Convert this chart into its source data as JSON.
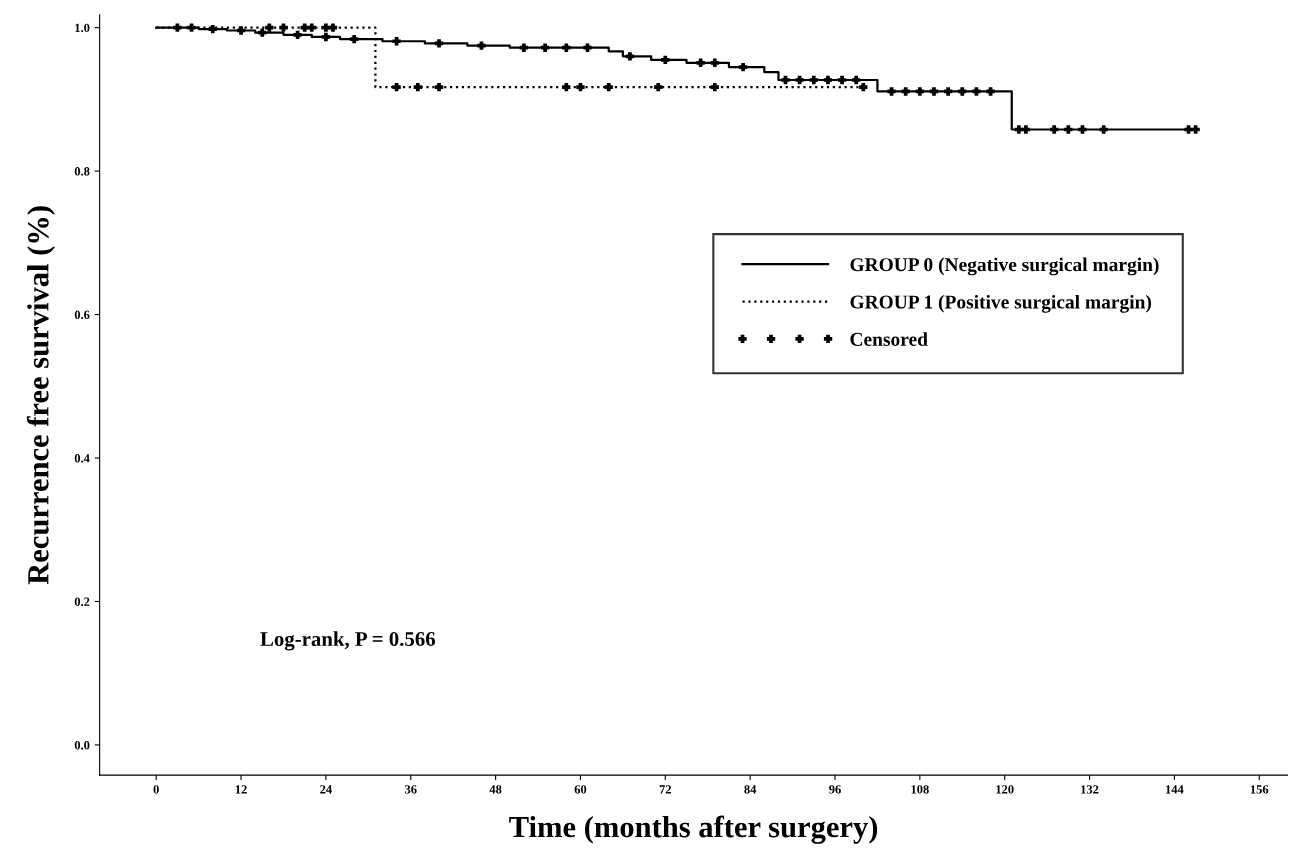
{
  "chart_data": {
    "type": "step",
    "xlabel": "Time (months after surgery)",
    "ylabel": "Recurrence free survival (%)",
    "xlim": [
      -8,
      160
    ],
    "xticks": [
      0,
      12,
      24,
      36,
      48,
      60,
      72,
      84,
      96,
      108,
      120,
      132,
      144,
      156
    ],
    "ylim": [
      -0.042,
      1.018
    ],
    "yticks": [
      {
        "value": 0,
        "label": "0.0"
      },
      0.2,
      0.4,
      0.6,
      0.8,
      {
        "value": 1,
        "label": "1.0"
      }
    ],
    "grid": false,
    "legend": "right",
    "annotations": [
      "Log-rank, P = 0.566"
    ],
    "series": [
      {
        "name": "GROUP 0 (Negative surgical margin)",
        "color": "#000000",
        "line_style": "solid",
        "x": [
          0,
          6,
          10,
          14,
          18,
          22,
          26,
          32,
          38,
          44,
          50,
          64,
          66,
          70,
          75,
          81,
          86,
          88,
          102,
          121,
          147
        ],
        "values": [
          1.0,
          0.998,
          0.996,
          0.993,
          0.99,
          0.987,
          0.984,
          0.981,
          0.978,
          0.975,
          0.972,
          0.967,
          0.96,
          0.955,
          0.951,
          0.945,
          0.938,
          0.927,
          0.911,
          0.858,
          0.858
        ]
      },
      {
        "name": "GROUP 1 (Positive surgical margin)",
        "color": "#000000",
        "line_style": "dotted",
        "x": [
          0,
          31,
          100
        ],
        "values": [
          1.0,
          0.917,
          0.917
        ]
      },
      {
        "name": "Censored",
        "type": "scatter",
        "color": "#000000",
        "marker": "cross",
        "x": [
          3,
          5,
          8,
          12,
          15,
          20,
          24,
          28,
          34,
          40,
          46,
          52,
          55,
          58,
          61,
          67,
          72,
          77,
          79,
          83,
          89,
          91,
          93,
          95,
          97,
          99,
          104,
          106,
          108,
          110,
          112,
          114,
          116,
          118,
          122,
          123,
          127,
          129,
          131,
          134,
          146,
          147,
          16,
          18,
          21,
          22,
          24,
          25,
          34,
          37,
          40,
          58,
          60,
          64,
          71,
          79,
          100
        ],
        "values": [
          1.0,
          1.0,
          0.998,
          0.996,
          0.993,
          0.99,
          0.987,
          0.984,
          0.981,
          0.978,
          0.975,
          0.972,
          0.972,
          0.972,
          0.972,
          0.96,
          0.955,
          0.951,
          0.951,
          0.945,
          0.927,
          0.927,
          0.927,
          0.927,
          0.927,
          0.927,
          0.911,
          0.911,
          0.911,
          0.911,
          0.911,
          0.911,
          0.911,
          0.911,
          0.858,
          0.858,
          0.858,
          0.858,
          0.858,
          0.858,
          0.858,
          0.858,
          1.0,
          1.0,
          1.0,
          1.0,
          1.0,
          1.0,
          0.917,
          0.917,
          0.917,
          0.917,
          0.917,
          0.917,
          0.917,
          0.917,
          0.917
        ]
      }
    ]
  }
}
